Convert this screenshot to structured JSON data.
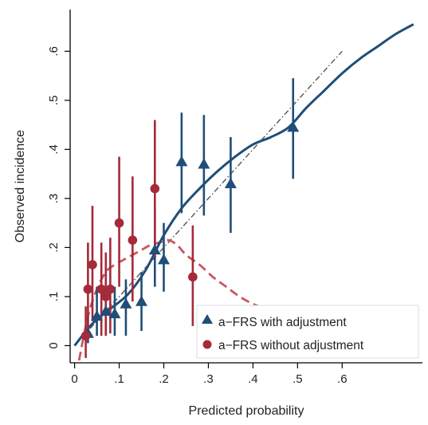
{
  "chart_data": {
    "type": "scatter",
    "xlabel": "Predicted probability",
    "ylabel": "Observed incidence",
    "xlim": [
      -0.01,
      0.78
    ],
    "ylim": [
      -0.035,
      0.685
    ],
    "x_ticks": [
      {
        "value": 0,
        "label": "0"
      },
      {
        "value": 0.1,
        "label": ".1"
      },
      {
        "value": 0.2,
        "label": ".2"
      },
      {
        "value": 0.3,
        "label": ".3"
      },
      {
        "value": 0.4,
        "label": ".4"
      },
      {
        "value": 0.5,
        "label": ".5"
      },
      {
        "value": 0.6,
        "label": ".6"
      }
    ],
    "y_ticks": [
      {
        "value": 0,
        "label": "0"
      },
      {
        "value": 0.1,
        "label": ".1"
      },
      {
        "value": 0.2,
        "label": ".2"
      },
      {
        "value": 0.3,
        "label": ".3"
      },
      {
        "value": 0.4,
        "label": ".4"
      },
      {
        "value": 0.5,
        "label": ".5"
      },
      {
        "value": 0.6,
        "label": ".6"
      }
    ],
    "grid": false,
    "legend_position": "bottom-right",
    "reference_line": {
      "x": [
        0.0,
        0.6
      ],
      "y": [
        0.0,
        0.6
      ],
      "style": "dash-dot",
      "color": "#555555"
    },
    "series": [
      {
        "name": "a−FRS with adjustment",
        "marker": "triangle",
        "color": "#1f4e79",
        "points": [
          {
            "x": 0.03,
            "y": 0.025,
            "lo": 0.005,
            "hi": 0.06
          },
          {
            "x": 0.05,
            "y": 0.06,
            "lo": 0.02,
            "hi": 0.12
          },
          {
            "x": 0.07,
            "y": 0.07,
            "lo": 0.02,
            "hi": 0.13
          },
          {
            "x": 0.09,
            "y": 0.065,
            "lo": 0.02,
            "hi": 0.12
          },
          {
            "x": 0.115,
            "y": 0.085,
            "lo": 0.02,
            "hi": 0.135
          },
          {
            "x": 0.15,
            "y": 0.09,
            "lo": 0.03,
            "hi": 0.15
          },
          {
            "x": 0.18,
            "y": 0.195,
            "lo": 0.12,
            "hi": 0.28
          },
          {
            "x": 0.2,
            "y": 0.175,
            "lo": 0.11,
            "hi": 0.25
          },
          {
            "x": 0.24,
            "y": 0.375,
            "lo": 0.27,
            "hi": 0.475
          },
          {
            "x": 0.29,
            "y": 0.37,
            "lo": 0.265,
            "hi": 0.47
          },
          {
            "x": 0.35,
            "y": 0.33,
            "lo": 0.23,
            "hi": 0.425
          },
          {
            "x": 0.49,
            "y": 0.445,
            "lo": 0.34,
            "hi": 0.545
          }
        ],
        "smooth": {
          "x": [
            0.0,
            0.04,
            0.08,
            0.12,
            0.16,
            0.2,
            0.24,
            0.28,
            0.32,
            0.36,
            0.4,
            0.44,
            0.48,
            0.52,
            0.56,
            0.6,
            0.64,
            0.68,
            0.72,
            0.76
          ],
          "y": [
            0.0,
            0.045,
            0.075,
            0.105,
            0.155,
            0.225,
            0.28,
            0.32,
            0.355,
            0.385,
            0.41,
            0.425,
            0.445,
            0.485,
            0.52,
            0.555,
            0.585,
            0.61,
            0.635,
            0.655
          ]
        }
      },
      {
        "name": "a−FRS without adjustment",
        "marker": "circle",
        "color": "#a52a3a",
        "points": [
          {
            "x": 0.025,
            "y": 0.02,
            "lo": -0.025,
            "hi": 0.08
          },
          {
            "x": 0.03,
            "y": 0.115,
            "lo": 0.02,
            "hi": 0.21
          },
          {
            "x": 0.04,
            "y": 0.165,
            "lo": 0.05,
            "hi": 0.285
          },
          {
            "x": 0.06,
            "y": 0.115,
            "lo": 0.02,
            "hi": 0.21
          },
          {
            "x": 0.07,
            "y": 0.1,
            "lo": 0.02,
            "hi": 0.19
          },
          {
            "x": 0.08,
            "y": 0.115,
            "lo": 0.025,
            "hi": 0.22
          },
          {
            "x": 0.1,
            "y": 0.25,
            "lo": 0.12,
            "hi": 0.385
          },
          {
            "x": 0.13,
            "y": 0.215,
            "lo": 0.09,
            "hi": 0.345
          },
          {
            "x": 0.18,
            "y": 0.32,
            "lo": 0.18,
            "hi": 0.46
          },
          {
            "x": 0.265,
            "y": 0.14,
            "lo": 0.04,
            "hi": 0.245
          }
        ],
        "smooth": {
          "x": [
            0.01,
            0.03,
            0.05,
            0.07,
            0.09,
            0.11,
            0.13,
            0.15,
            0.17,
            0.19,
            0.21,
            0.23,
            0.25,
            0.28,
            0.31,
            0.34,
            0.37,
            0.4,
            0.43,
            0.45
          ],
          "y": [
            -0.03,
            0.06,
            0.115,
            0.15,
            0.165,
            0.175,
            0.185,
            0.195,
            0.205,
            0.21,
            0.215,
            0.205,
            0.185,
            0.165,
            0.14,
            0.12,
            0.1,
            0.085,
            0.075,
            0.065
          ]
        }
      }
    ]
  }
}
